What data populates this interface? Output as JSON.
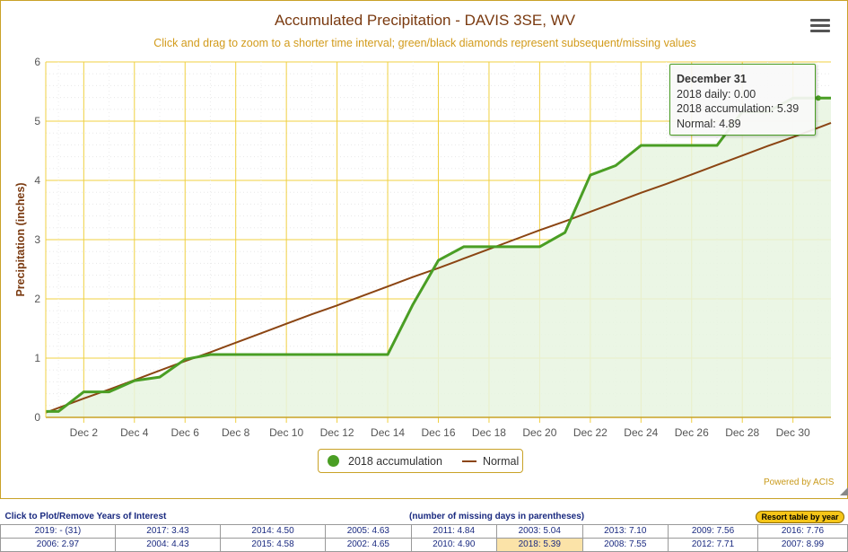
{
  "chart": {
    "title": "Accumulated Precipitation - DAVIS 3SE, WV",
    "subtitle": "Click and drag to zoom to a shorter time interval; green/black diamonds represent subsequent/missing values",
    "powered_by": "Powered by ACIS",
    "colors": {
      "accumulation": "#4a9e24",
      "area_fill": "#e8f5e0",
      "normal": "#8b4513",
      "grid": "#f0d040",
      "axis_text": "#555555",
      "ylabel": "#7a3a10"
    }
  },
  "chart_data": {
    "type": "line",
    "title": "Accumulated Precipitation - DAVIS 3SE, WV",
    "subtitle": "Click and drag to zoom to a shorter time interval; green/black diamonds represent subsequent/missing values",
    "ylabel": "Precipitation (inches)",
    "xlabel": "",
    "x": [
      1,
      2,
      3,
      4,
      5,
      6,
      7,
      8,
      9,
      10,
      11,
      12,
      13,
      14,
      15,
      16,
      17,
      18,
      19,
      20,
      21,
      22,
      23,
      24,
      25,
      26,
      27,
      28,
      29,
      30,
      31
    ],
    "x_tick_labels": [
      "Dec 2",
      "Dec 4",
      "Dec 6",
      "Dec 8",
      "Dec 10",
      "Dec 12",
      "Dec 14",
      "Dec 16",
      "Dec 18",
      "Dec 20",
      "Dec 22",
      "Dec 24",
      "Dec 26",
      "Dec 28",
      "Dec 30"
    ],
    "x_tick_days": [
      2,
      4,
      6,
      8,
      10,
      12,
      14,
      16,
      18,
      20,
      22,
      24,
      26,
      28,
      30
    ],
    "xlim": [
      0.5,
      31.5
    ],
    "ylim": [
      0,
      6
    ],
    "y_ticks": [
      0,
      1,
      2,
      3,
      4,
      5,
      6
    ],
    "grid": true,
    "legend_position": "bottom-center",
    "series": [
      {
        "name": "2018 accumulation",
        "kind": "area",
        "values": [
          0.1,
          0.43,
          0.43,
          0.62,
          0.68,
          0.98,
          1.06,
          1.06,
          1.06,
          1.06,
          1.06,
          1.06,
          1.06,
          1.06,
          1.91,
          2.65,
          2.88,
          2.88,
          2.88,
          2.88,
          3.12,
          4.09,
          4.25,
          4.59,
          4.59,
          4.59,
          4.59,
          5.16,
          5.16,
          5.39,
          5.39
        ]
      },
      {
        "name": "Normal",
        "kind": "line",
        "values": [
          0.16,
          0.32,
          0.47,
          0.63,
          0.79,
          0.95,
          1.1,
          1.26,
          1.42,
          1.58,
          1.74,
          1.89,
          2.05,
          2.21,
          2.37,
          2.52,
          2.68,
          2.84,
          3.0,
          3.16,
          3.31,
          3.47,
          3.63,
          3.79,
          3.94,
          4.1,
          4.26,
          4.42,
          4.58,
          4.73,
          4.89
        ]
      }
    ]
  },
  "tooltip": {
    "date": "December 31",
    "daily": "2018 daily: 0.00",
    "accumulation": "2018 accumulation: 5.39",
    "normal": "Normal: 4.89"
  },
  "legend": {
    "accumulation_label": "2018 accumulation",
    "normal_label": "Normal"
  },
  "years_table": {
    "header_left": "Click to Plot/Remove Years of Interest",
    "header_mid": "(number of missing days in parentheses)",
    "sort_button": "Resort table by year",
    "rows": [
      [
        "2019: - (31)",
        "2017: 3.43",
        "2014: 4.50",
        "2005: 4.63",
        "2011: 4.84",
        "2003: 5.04",
        "2013: 7.10",
        "2009: 7.56",
        "2016: 7.76"
      ],
      [
        "2006: 2.97",
        "2004: 4.43",
        "2015: 4.58",
        "2002: 4.65",
        "2010: 4.90",
        "2018: 5.39",
        "2008: 7.55",
        "2012: 7.71",
        "2007: 8.99"
      ]
    ],
    "selected": "2018: 5.39"
  }
}
